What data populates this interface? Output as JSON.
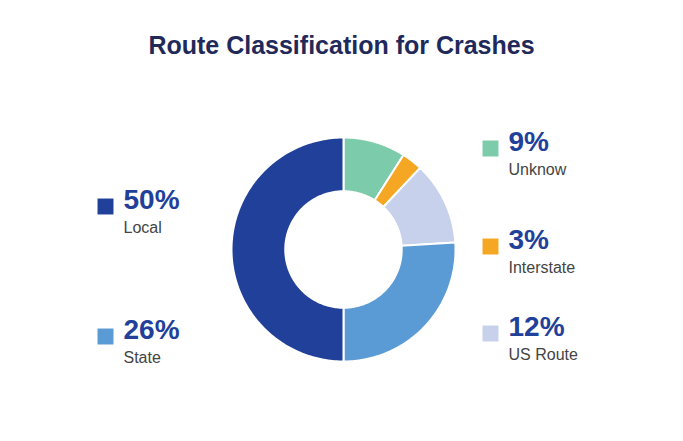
{
  "chart_data": {
    "type": "pie",
    "title": "Route Classification for Crashes",
    "categories": [
      "Unknow",
      "Interstate",
      "US Route",
      "State",
      "Local"
    ],
    "values": [
      9,
      3,
      12,
      26,
      50
    ],
    "value_labels": [
      "9%",
      "3%",
      "12%",
      "26%",
      "50%"
    ],
    "colors": [
      "#7ccbab",
      "#f5a623",
      "#c8d1ec",
      "#5b9bd5",
      "#21409a"
    ]
  }
}
